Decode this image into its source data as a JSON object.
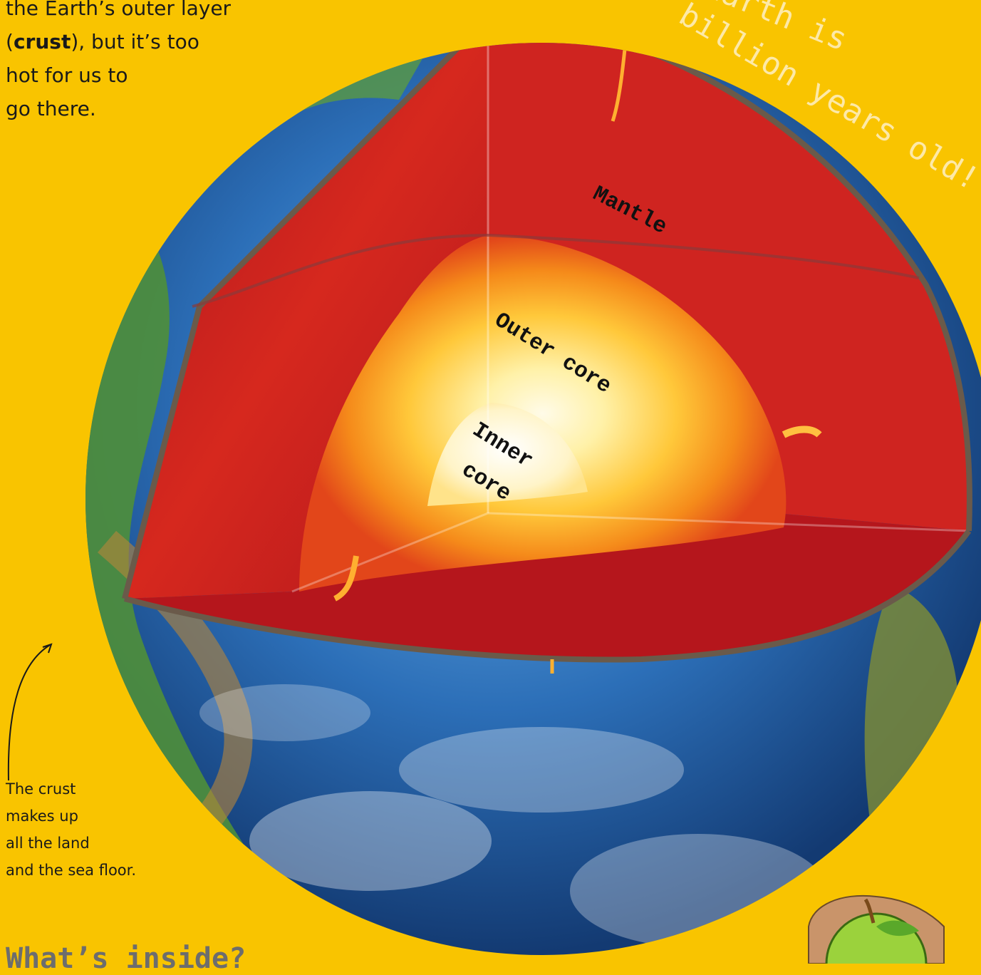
{
  "intro": {
    "lines": [
      "the Earth’s outer layer",
      "(",
      "crust",
      "), but it’s too",
      "hot for us to",
      "go there."
    ]
  },
  "fact": {
    "line1": "Earth is",
    "line2": "billion years old!"
  },
  "layers": {
    "mantle": "Mantle",
    "outer_core": "Outer core",
    "inner_core_line1": "Inner",
    "inner_core_line2": "core"
  },
  "caption": {
    "lines": [
      "The crust",
      "makes up",
      "all the land",
      "and the sea floor."
    ]
  },
  "heading": "What’s inside?",
  "colors": {
    "background": "#f9c400",
    "ocean": "#2c6fb8",
    "land": "#4f8f3a",
    "mantle": "#c81e1e",
    "outer_core": "#f8a21a",
    "inner_core": "#fff6d6"
  }
}
